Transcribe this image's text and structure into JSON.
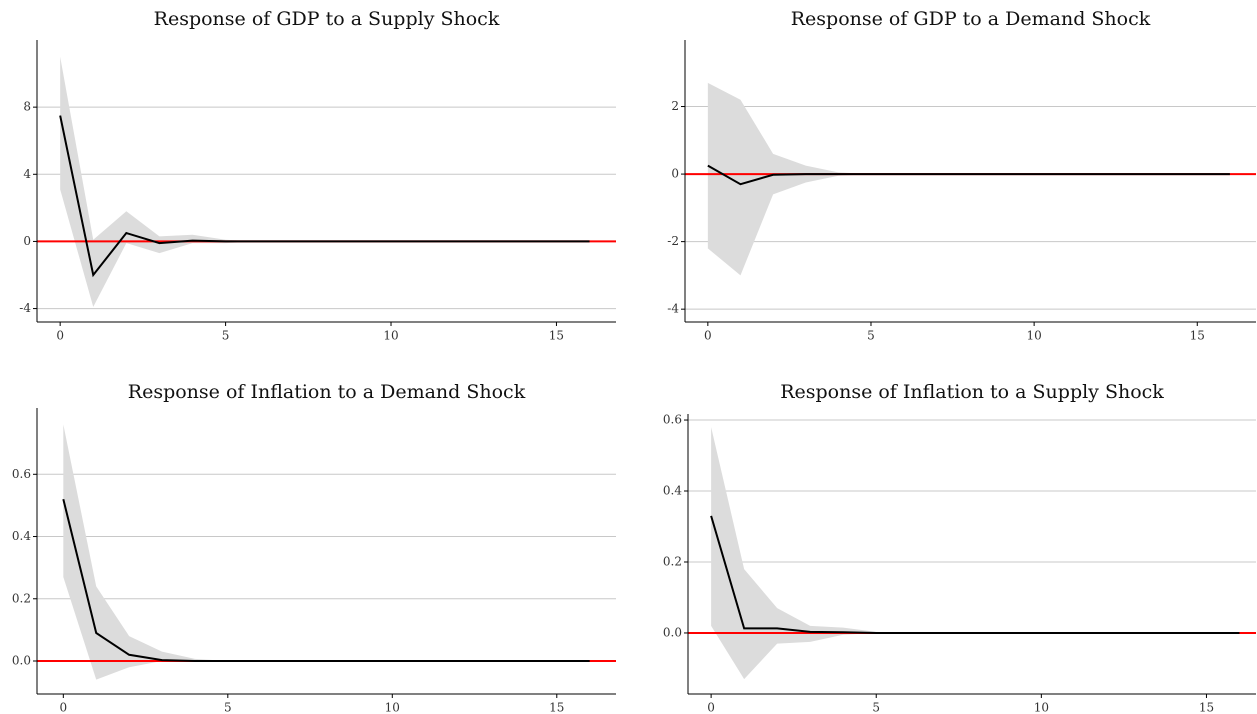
{
  "chart_data": [
    {
      "type": "line",
      "title": "Response of GDP to a Supply Shock",
      "x": [
        0,
        1,
        2,
        3,
        4,
        5,
        6,
        7,
        8,
        9,
        10,
        11,
        12,
        13,
        14,
        15,
        16
      ],
      "series": [
        {
          "color": "#000000",
          "band_color": "#dcdcdc",
          "values": [
            7.5,
            -2.0,
            0.5,
            -0.1,
            0.05,
            0,
            0,
            0,
            0,
            0,
            0,
            0,
            0,
            0,
            0,
            0,
            0
          ],
          "lower": [
            3.1,
            -3.9,
            -0.1,
            -0.7,
            -0.1,
            -0.1,
            0,
            0,
            0,
            0,
            0,
            0,
            0,
            0,
            0,
            0,
            0
          ],
          "upper": [
            11,
            0.1,
            1.8,
            0.3,
            0.4,
            0.1,
            0,
            0,
            0,
            0,
            0,
            0,
            0,
            0,
            0,
            0,
            0
          ]
        }
      ],
      "reference_line": {
        "value": 0,
        "color": "#ff0000"
      },
      "xlim": [
        -0.7,
        16.8
      ],
      "xticks": [
        0,
        5,
        10,
        15
      ],
      "ylim": [
        -4.8,
        12
      ],
      "yticks": [
        -4,
        0,
        4,
        8
      ],
      "grid": true
    },
    {
      "type": "line",
      "title": "Response of GDP to a Demand Shock",
      "x": [
        0,
        1,
        2,
        3,
        4,
        5,
        6,
        7,
        8,
        9,
        10,
        11,
        12,
        13,
        14,
        15,
        16
      ],
      "series": [
        {
          "color": "#000000",
          "band_color": "#dcdcdc",
          "values": [
            0.25,
            -0.3,
            -0.02,
            0,
            0,
            0,
            0,
            0,
            0,
            0,
            0,
            0,
            0,
            0,
            0,
            0,
            0
          ],
          "lower": [
            -2.2,
            -3.0,
            -0.6,
            -0.25,
            -0.05,
            0,
            0,
            0,
            0,
            0,
            0,
            0,
            0,
            0,
            0,
            0,
            0
          ],
          "upper": [
            2.7,
            2.2,
            0.6,
            0.25,
            0.05,
            0,
            0,
            0,
            0,
            0,
            0,
            0,
            0,
            0,
            0,
            0,
            0
          ]
        }
      ],
      "reference_line": {
        "value": 0,
        "color": "#ff0000"
      },
      "xlim": [
        -0.7,
        16.8
      ],
      "xticks": [
        0,
        5,
        10,
        15
      ],
      "ylim": [
        -4.38,
        3.97
      ],
      "yticks": [
        -4,
        -2,
        0,
        2
      ],
      "grid": true
    },
    {
      "type": "line",
      "title": "Response of Inflation to a Demand Shock",
      "x": [
        0,
        1,
        2,
        3,
        4,
        5,
        6,
        7,
        8,
        9,
        10,
        11,
        12,
        13,
        14,
        15,
        16
      ],
      "series": [
        {
          "color": "#000000",
          "band_color": "#dcdcdc",
          "values": [
            0.52,
            0.09,
            0.02,
            0.003,
            0,
            0,
            0,
            0,
            0,
            0,
            0,
            0,
            0,
            0,
            0,
            0,
            0
          ],
          "lower": [
            0.27,
            -0.06,
            -0.02,
            0,
            0,
            0,
            0,
            0,
            0,
            0,
            0,
            0,
            0,
            0,
            0,
            0,
            0
          ],
          "upper": [
            0.76,
            0.24,
            0.08,
            0.03,
            0.007,
            0,
            0,
            0,
            0,
            0,
            0,
            0,
            0,
            0,
            0,
            0,
            0
          ]
        }
      ],
      "reference_line": {
        "value": 0,
        "color": "#ff0000"
      },
      "xlim": [
        -0.8,
        16.8
      ],
      "xticks": [
        0,
        5,
        10,
        15
      ],
      "ylim": [
        -0.106,
        0.813
      ],
      "yticks": [
        {
          "value": 0,
          "label": "0.0"
        },
        0.2,
        0.4,
        0.6
      ],
      "grid": true
    },
    {
      "type": "line",
      "title": "Response of Inflation to a Supply Shock",
      "x": [
        0,
        1,
        2,
        3,
        4,
        5,
        6,
        7,
        8,
        9,
        10,
        11,
        12,
        13,
        14,
        15,
        16
      ],
      "series": [
        {
          "color": "#000000",
          "band_color": "#dcdcdc",
          "values": [
            0.33,
            0.013,
            0.013,
            0.003,
            0.002,
            0,
            0,
            0,
            0,
            0,
            0,
            0,
            0,
            0,
            0,
            0,
            0
          ],
          "lower": [
            0.02,
            -0.13,
            -0.03,
            -0.025,
            -0.005,
            0,
            0,
            0,
            0,
            0,
            0,
            0,
            0,
            0,
            0,
            0,
            0
          ],
          "upper": [
            0.58,
            0.18,
            0.07,
            0.02,
            0.015,
            0.003,
            0,
            0,
            0,
            0,
            0,
            0,
            0,
            0,
            0,
            0,
            0
          ]
        }
      ],
      "reference_line": {
        "value": 0,
        "color": "#ff0000"
      },
      "xlim": [
        -0.7,
        16.5
      ],
      "xticks": [
        0,
        5,
        10,
        15
      ],
      "ylim": [
        -0.172,
        0.617
      ],
      "yticks": [
        {
          "value": 0,
          "label": "0.0"
        },
        0.2,
        0.4,
        0.6
      ],
      "grid": true
    }
  ]
}
